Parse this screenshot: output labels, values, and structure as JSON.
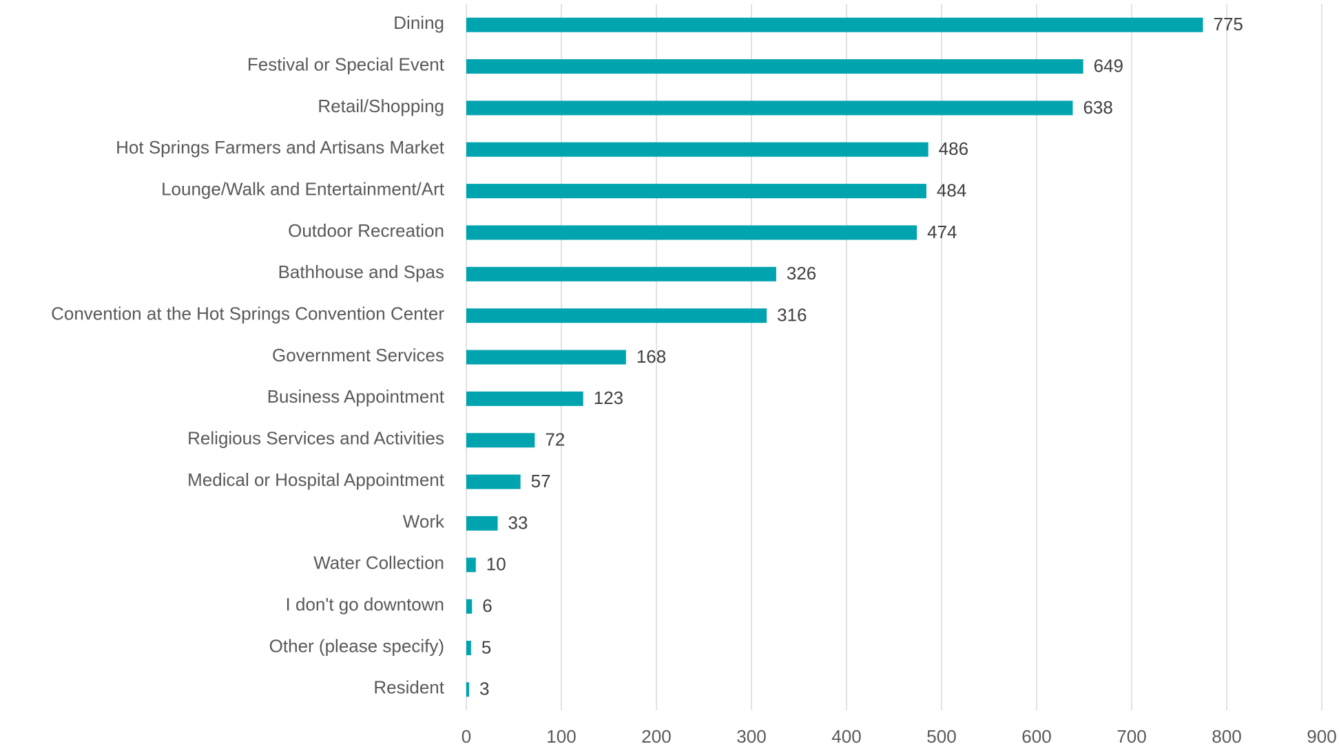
{
  "chart_data": {
    "type": "bar",
    "orientation": "horizontal",
    "categories": [
      "Dining",
      "Festival or Special Event",
      "Retail/Shopping",
      "Hot Springs Farmers and Artisans Market",
      "Lounge/Walk and Entertainment/Art",
      "Outdoor Recreation",
      "Bathhouse and Spas",
      "Convention at the Hot Springs Convention Center",
      "Government Services",
      "Business Appointment",
      "Religious Services and Activities",
      "Medical or Hospital Appointment",
      "Work",
      "Water Collection",
      "I don't go downtown",
      "Other (please specify)",
      "Resident"
    ],
    "values": [
      775,
      649,
      638,
      486,
      484,
      474,
      326,
      316,
      168,
      123,
      72,
      57,
      33,
      10,
      6,
      5,
      3
    ],
    "color": "#00a4ae",
    "xlim": [
      0,
      900
    ],
    "xticks": [
      0,
      100,
      200,
      300,
      400,
      500,
      600,
      700,
      800,
      900
    ],
    "grid": true
  }
}
